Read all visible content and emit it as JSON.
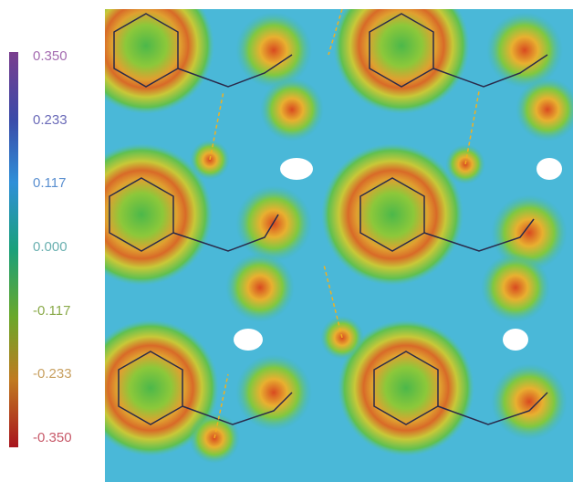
{
  "colorbar": {
    "range": [
      -0.35,
      0.35
    ],
    "ticks": [
      {
        "value": 0.35,
        "label": "0.350",
        "color": "#a46bb0"
      },
      {
        "value": 0.233,
        "label": "0.233",
        "color": "#6a6ab8"
      },
      {
        "value": 0.117,
        "label": "0.117",
        "color": "#5a8fd0"
      },
      {
        "value": 0,
        "label": "0.000",
        "color": "#6ab0b0"
      },
      {
        "value": -0.117,
        "label": "-0.117",
        "color": "#8aaa4a"
      },
      {
        "value": -0.233,
        "label": "-0.233",
        "color": "#c8a060"
      },
      {
        "value": -0.35,
        "label": "-0.350",
        "color": "#c85a6a"
      }
    ]
  }
}
